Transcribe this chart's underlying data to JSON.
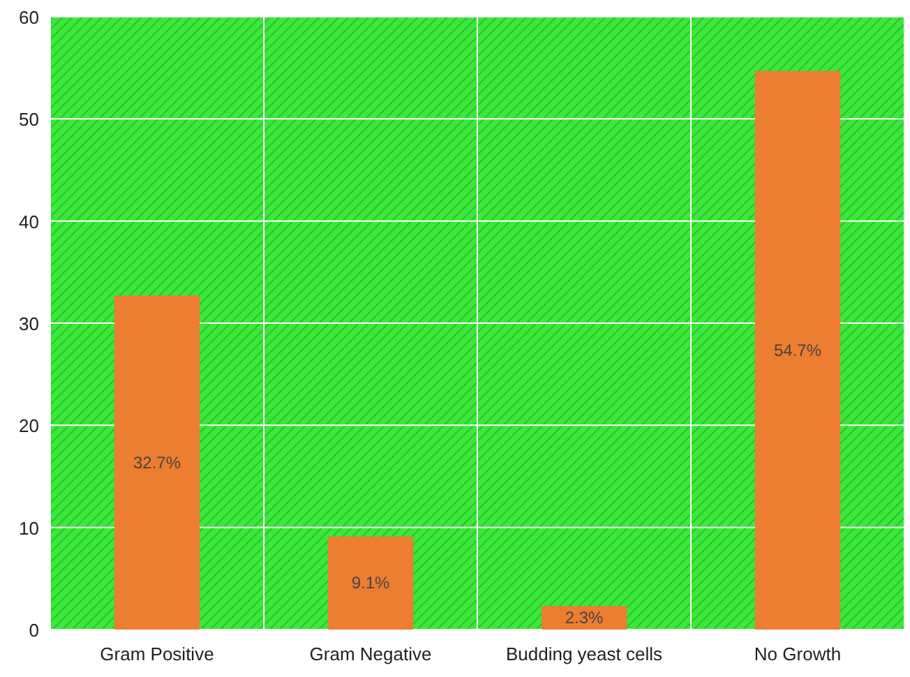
{
  "chart_data": {
    "type": "bar",
    "categories": [
      "Gram Positive",
      "Gram Negative",
      "Budding yeast cells",
      "No Growth"
    ],
    "values": [
      32.7,
      9.1,
      2.3,
      54.7
    ],
    "color": "#ed7d31",
    "value_labels": [
      "32.7%",
      "9.1%",
      "2.3%",
      "54.7%"
    ],
    "ylim": [
      0,
      60
    ],
    "yticks": [
      0,
      10,
      20,
      30,
      40,
      50,
      60
    ],
    "grid": true
  }
}
